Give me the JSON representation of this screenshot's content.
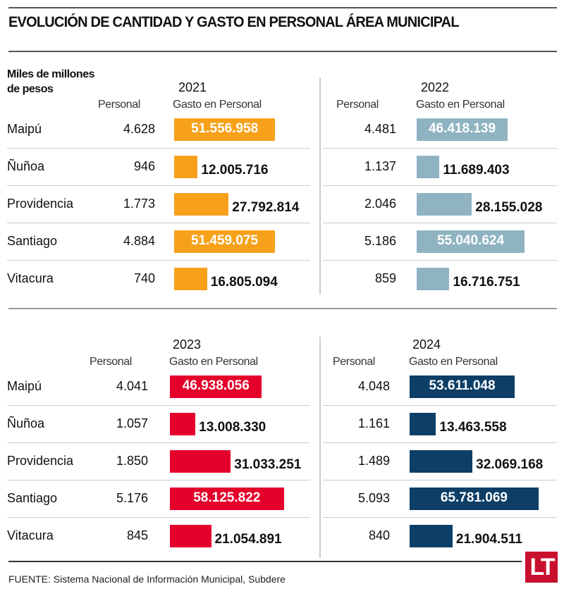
{
  "chart_data": [
    {
      "type": "bar",
      "title": "2021",
      "color": "#f7a11a",
      "columns": [
        "Personal",
        "Gasto en Personal"
      ],
      "categories": [
        "Maipú",
        "Ñuñoa",
        "Providencia",
        "Santiago",
        "Vitacura"
      ],
      "personal": [
        "4.628",
        "946",
        "1.773",
        "4.884",
        "740"
      ],
      "values": [
        51556958,
        12005716,
        27792814,
        51459075,
        16805094
      ],
      "labels": [
        "51.556.958",
        "12.005.716",
        "27.792.814",
        "51.459.075",
        "16.805.094"
      ]
    },
    {
      "type": "bar",
      "title": "2022",
      "color": "#8fb3c1",
      "columns": [
        "Personal",
        "Gasto en Personal"
      ],
      "categories": [
        "Maipú",
        "Ñuñoa",
        "Providencia",
        "Santiago",
        "Vitacura"
      ],
      "personal": [
        "4.481",
        "1.137",
        "2.046",
        "5.186",
        "859"
      ],
      "values": [
        46418139,
        11689403,
        28155028,
        55040624,
        16716751
      ],
      "labels": [
        "46.418.139",
        "11.689.403",
        "28.155.028",
        "55.040.624",
        "16.716.751"
      ]
    },
    {
      "type": "bar",
      "title": "2023",
      "color": "#e4002b",
      "columns": [
        "Personal",
        "Gasto en Personal"
      ],
      "categories": [
        "Maipú",
        "Ñuñoa",
        "Providencia",
        "Santiago",
        "Vitacura"
      ],
      "personal": [
        "4.041",
        "1.057",
        "1.850",
        "5.176",
        "845"
      ],
      "values": [
        46938056,
        13008330,
        31033251,
        58125822,
        21054891
      ],
      "labels": [
        "46.938.056",
        "13.008.330",
        "31.033.251",
        "58.125.822",
        "21.054.891"
      ]
    },
    {
      "type": "bar",
      "title": "2024",
      "color": "#0d3e66",
      "columns": [
        "Personal",
        "Gasto en Personal"
      ],
      "categories": [
        "Maipú",
        "Ñuñoa",
        "Providencia",
        "Santiago",
        "Vitacura"
      ],
      "personal": [
        "4.048",
        "1.161",
        "1.489",
        "5.093",
        "840"
      ],
      "values": [
        53611048,
        13463558,
        32069168,
        65781069,
        21904511
      ],
      "labels": [
        "53.611.048",
        "13.463.558",
        "32.069.168",
        "65.781.069",
        "21.904.511"
      ]
    }
  ],
  "header": {
    "title": "EVOLUCIÓN DE CANTIDAD Y GASTO EN PERSONAL ÁREA MUNICIPAL",
    "unit": "Miles de millones de pesos"
  },
  "footer": {
    "source": "FUENTE: Sistema Nacional de Información Municipal, Subdere",
    "logo": "LT"
  }
}
